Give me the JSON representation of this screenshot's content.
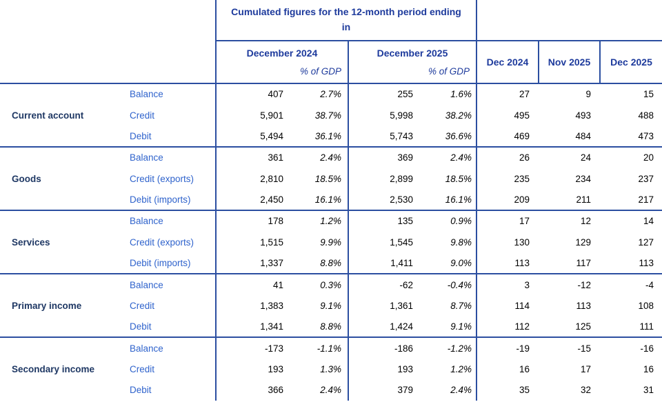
{
  "colors": {
    "table_border": "#2B4EA0",
    "header_text": "#1D3A9C",
    "category_text": "#1F3864",
    "row_label_text": "#2F63CC",
    "value_text": "#000000"
  },
  "header": {
    "cumulated_title": "Cumulated figures for the 12-month period ending in",
    "period_columns": [
      {
        "label": "December 2024",
        "sub": "% of GDP"
      },
      {
        "label": "December 2025",
        "sub": "% of GDP"
      }
    ],
    "month_columns": [
      "Dec 2024",
      "Nov 2025",
      "Dec 2025"
    ]
  },
  "groups": [
    {
      "name": "Current account",
      "rows": [
        {
          "label": "Balance",
          "values": [
            "407",
            "2.7%",
            "255",
            "1.6%",
            "27",
            "9",
            "15"
          ]
        },
        {
          "label": "Credit",
          "values": [
            "5,901",
            "38.7%",
            "5,998",
            "38.2%",
            "495",
            "493",
            "488"
          ]
        },
        {
          "label": "Debit",
          "values": [
            "5,494",
            "36.1%",
            "5,743",
            "36.6%",
            "469",
            "484",
            "473"
          ]
        }
      ]
    },
    {
      "name": "Goods",
      "rows": [
        {
          "label": "Balance",
          "values": [
            "361",
            "2.4%",
            "369",
            "2.4%",
            "26",
            "24",
            "20"
          ]
        },
        {
          "label": "Credit (exports)",
          "values": [
            "2,810",
            "18.5%",
            "2,899",
            "18.5%",
            "235",
            "234",
            "237"
          ]
        },
        {
          "label": "Debit (imports)",
          "values": [
            "2,450",
            "16.1%",
            "2,530",
            "16.1%",
            "209",
            "211",
            "217"
          ]
        }
      ]
    },
    {
      "name": "Services",
      "rows": [
        {
          "label": "Balance",
          "values": [
            "178",
            "1.2%",
            "135",
            "0.9%",
            "17",
            "12",
            "14"
          ]
        },
        {
          "label": "Credit (exports)",
          "values": [
            "1,515",
            "9.9%",
            "1,545",
            "9.8%",
            "130",
            "129",
            "127"
          ]
        },
        {
          "label": "Debit (imports)",
          "values": [
            "1,337",
            "8.8%",
            "1,411",
            "9.0%",
            "113",
            "117",
            "113"
          ]
        }
      ]
    },
    {
      "name": "Primary income",
      "rows": [
        {
          "label": "Balance",
          "values": [
            "41",
            "0.3%",
            "-62",
            "-0.4%",
            "3",
            "-12",
            "-4"
          ]
        },
        {
          "label": "Credit",
          "values": [
            "1,383",
            "9.1%",
            "1,361",
            "8.7%",
            "114",
            "113",
            "108"
          ]
        },
        {
          "label": "Debit",
          "values": [
            "1,341",
            "8.8%",
            "1,424",
            "9.1%",
            "112",
            "125",
            "111"
          ]
        }
      ]
    },
    {
      "name": "Secondary income",
      "rows": [
        {
          "label": "Balance",
          "values": [
            "-173",
            "-1.1%",
            "-186",
            "-1.2%",
            "-19",
            "-15",
            "-16"
          ]
        },
        {
          "label": "Credit",
          "values": [
            "193",
            "1.3%",
            "193",
            "1.2%",
            "16",
            "17",
            "16"
          ]
        },
        {
          "label": "Debit",
          "values": [
            "366",
            "2.4%",
            "379",
            "2.4%",
            "35",
            "32",
            "31"
          ]
        }
      ]
    }
  ]
}
